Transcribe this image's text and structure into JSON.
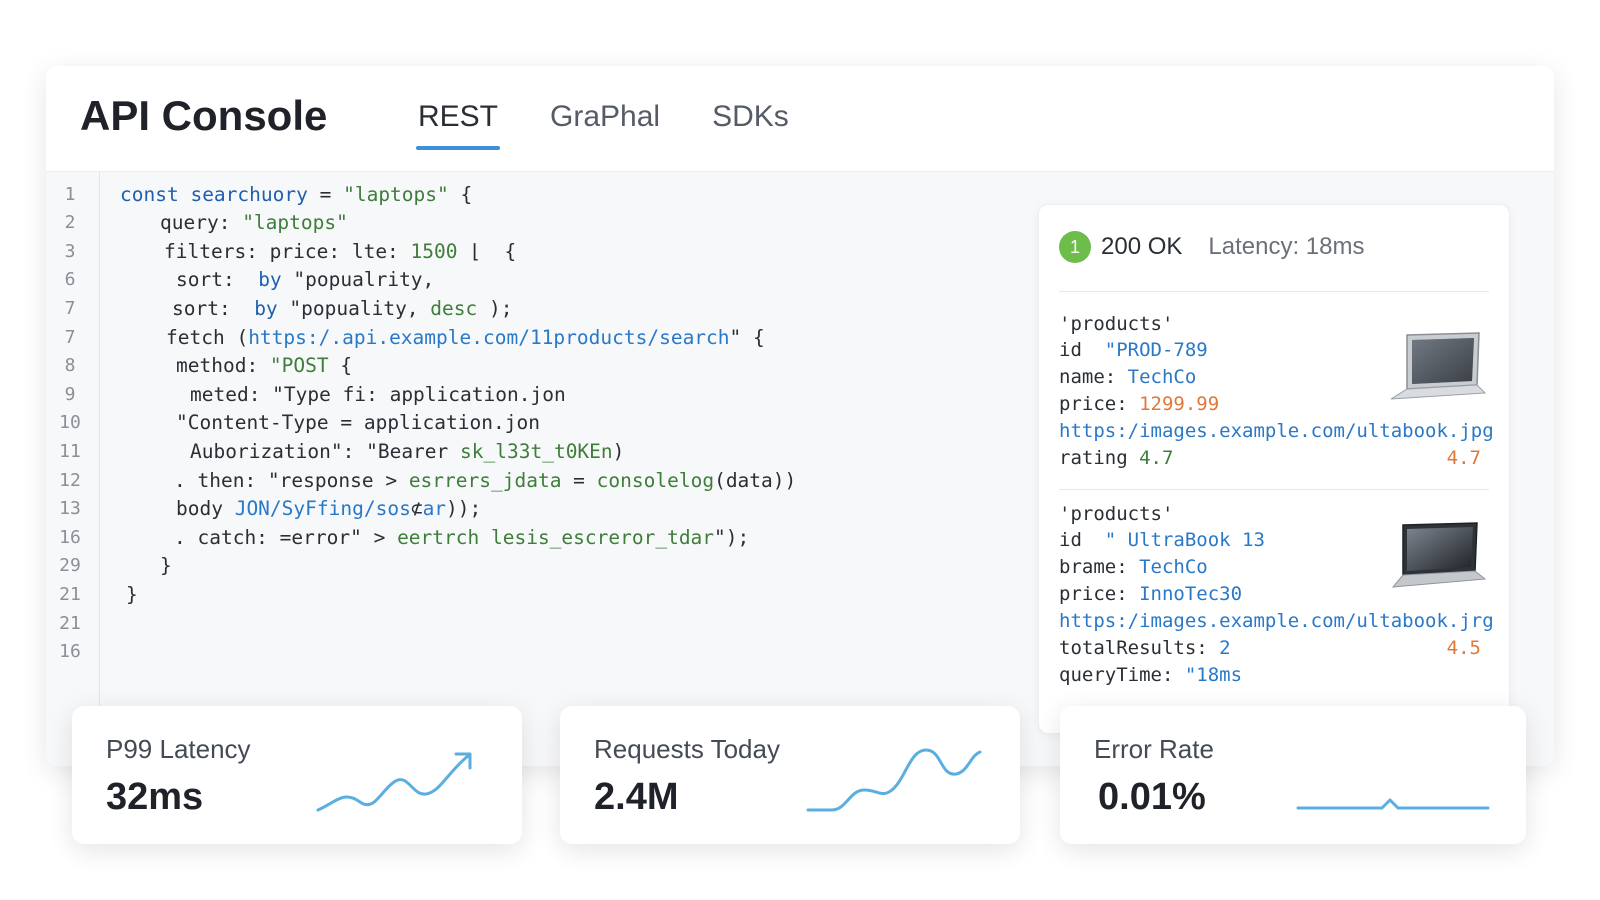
{
  "app": {
    "title": "API Console",
    "tabs": [
      {
        "label": "REST",
        "active": true
      },
      {
        "label": "GraPhal",
        "active": false
      },
      {
        "label": "SDKs",
        "active": false
      }
    ]
  },
  "editor": {
    "lines": [
      {
        "num": "1",
        "tokens": [
          [
            "kw",
            "const "
          ],
          [
            "kw",
            "searchuory"
          ],
          [
            "id",
            " = "
          ],
          [
            "str",
            "\"laptops\""
          ],
          [
            "id",
            " {"
          ]
        ]
      },
      {
        "num": "2",
        "tokens": [
          [
            "id",
            "query: "
          ],
          [
            "str",
            "\"laptops\""
          ]
        ]
      },
      {
        "num": "3",
        "tokens": [
          [
            "id",
            "filters: price: lte: "
          ],
          [
            "num",
            "1500"
          ],
          [
            "id",
            " ⌊  {"
          ]
        ]
      },
      {
        "num": "6",
        "tokens": [
          [
            "id",
            "sort:  "
          ],
          [
            "kw",
            "by"
          ],
          [
            "id",
            " \"popualrity,"
          ]
        ]
      },
      {
        "num": "7",
        "tokens": [
          [
            "id",
            "sort:  "
          ],
          [
            "kw",
            "by"
          ],
          [
            "id",
            " \"popuality, "
          ],
          [
            "str",
            "desc"
          ],
          [
            "id",
            " );"
          ]
        ]
      },
      {
        "num": "7",
        "tokens": [
          [
            "id",
            "fetch ("
          ],
          [
            "url",
            "https:/.api.example.com/11products/search"
          ],
          [
            "id",
            "\" {"
          ]
        ]
      },
      {
        "num": "8",
        "tokens": [
          [
            "id",
            "method: "
          ],
          [
            "str",
            "\"POST"
          ],
          [
            "id",
            " {"
          ]
        ]
      },
      {
        "num": "9",
        "tokens": [
          [
            "id",
            "meted: \"Type fi: application.jon"
          ]
        ]
      },
      {
        "num": "10",
        "tokens": [
          [
            "id",
            "\"Content-Type = application.jon"
          ]
        ]
      },
      {
        "num": "11",
        "tokens": [
          [
            "id",
            "Auborization\": \"Bearer "
          ],
          [
            "str",
            "sk_l33t_t0KEn"
          ],
          [
            "id",
            ")"
          ]
        ]
      },
      {
        "num": "12",
        "tokens": [
          [
            "id",
            ". then: \"response > "
          ],
          [
            "str",
            "esrrers_jdata"
          ],
          [
            "id",
            " = "
          ],
          [
            "str",
            "consolelog"
          ],
          [
            "id",
            "(data))"
          ]
        ]
      },
      {
        "num": "13",
        "tokens": [
          [
            "id",
            "body "
          ],
          [
            "url",
            "JON/SyFfing/sos"
          ],
          [
            "id",
            "⊄"
          ],
          [
            "url",
            "ar"
          ],
          [
            "id",
            "));"
          ]
        ]
      },
      {
        "num": "16",
        "tokens": [
          [
            "id",
            ". catch: =error\" > "
          ],
          [
            "str",
            "eertrch lesis_escreror_tdar"
          ],
          [
            "id",
            "\");"
          ]
        ]
      },
      {
        "num": "29",
        "tokens": [
          [
            "id",
            "}"
          ]
        ]
      },
      {
        "num": "21",
        "tokens": [
          [
            "id",
            "}"
          ]
        ]
      },
      {
        "num": "21",
        "tokens": []
      },
      {
        "num": "16",
        "tokens": []
      }
    ]
  },
  "response": {
    "status_badge": "1",
    "status": "200 OK",
    "latency": "Latency: 18ms",
    "product1": {
      "header": "'products'",
      "id_key": "id",
      "id_val": "\"PROD-789",
      "name_key": "name:",
      "name_val": "TechCo",
      "price_key": "price:",
      "price_val": "1299.99",
      "url": "https:/images.example.com/ultabook.jpg",
      "rating_key": "rating",
      "rating_val": "4.7",
      "rating_right": "4.7"
    },
    "product2": {
      "header": "'products'",
      "id_key": "id",
      "id_val": "\" UltraBook 13",
      "name_key": "brame:",
      "name_val": "TechCo",
      "price_key": "price:",
      "price_val": "InnoTec30",
      "url": "https:/images.example.com/ultabook.jrg",
      "total_key": "totalResults:",
      "total_val": "2",
      "rating_right": "4.5",
      "query_key": "queryTime:",
      "query_val": "\"18ms"
    }
  },
  "metrics": [
    {
      "label": "P99 Latency",
      "value": "32ms",
      "trend": "rising"
    },
    {
      "label": "Requests Today",
      "value": "2.4M",
      "trend": "wavy-rising"
    },
    {
      "label": "Error Rate",
      "value": "0.01%",
      "trend": "flat"
    }
  ],
  "colors": {
    "accent": "#3d8fd8",
    "success": "#6dbd4a",
    "keyword": "#1f5fae",
    "string": "#3f7d3a",
    "url": "#2a78c8",
    "orange": "#e0783a",
    "sparkline": "#5aaee0"
  }
}
